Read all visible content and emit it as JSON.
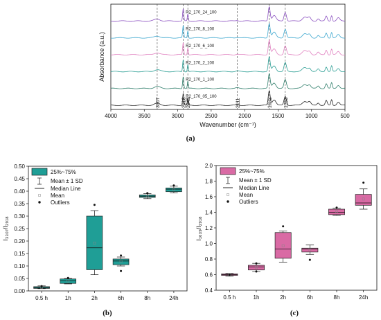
{
  "chart_data": [
    {
      "panel": "(a)",
      "type": "line",
      "xlabel": "Wavenumber (cm⁻¹)",
      "ylabel": "Absorbance (a.u.)",
      "xlim": [
        4000,
        500
      ],
      "x_ticks": [
        "4000",
        "3500",
        "3000",
        "2500",
        "2000",
        "1500",
        "1000",
        "500"
      ],
      "reference_lines": [
        "3307",
        "2918",
        "2849",
        "2111",
        "1632",
        "1393"
      ],
      "colors": [
        "#222222",
        "#2e7d6a",
        "#2b9e94",
        "#e07fbf",
        "#3ca7cf",
        "#8a4fc0"
      ],
      "series": [
        {
          "name": "R2_170_05_100"
        },
        {
          "name": "R2_170_1_100"
        },
        {
          "name": "R2_170_2_100"
        },
        {
          "name": "R2_170_6_100"
        },
        {
          "name": "R2_170_8_100"
        },
        {
          "name": "R2_170_24_100"
        }
      ],
      "peaks": [
        {
          "x": 3307,
          "h": 0.12,
          "w": 60
        },
        {
          "x": 2918,
          "h": 0.75,
          "w": 12
        },
        {
          "x": 2849,
          "h": 0.45,
          "w": 10
        },
        {
          "x": 2111,
          "h": 0.04,
          "w": 30
        },
        {
          "x": 1632,
          "h": 0.9,
          "w": 20
        },
        {
          "x": 1560,
          "h": 0.35,
          "w": 40
        },
        {
          "x": 1393,
          "h": 0.55,
          "w": 25
        },
        {
          "x": 1100,
          "h": 0.25,
          "w": 50
        },
        {
          "x": 1030,
          "h": 0.2,
          "w": 30
        },
        {
          "x": 900,
          "h": 0.15,
          "w": 25
        },
        {
          "x": 780,
          "h": 0.3,
          "w": 20
        },
        {
          "x": 700,
          "h": 0.35,
          "w": 15
        },
        {
          "x": 600,
          "h": 0.2,
          "w": 30
        }
      ]
    },
    {
      "panel": "(b)",
      "type": "box",
      "ylabel": "I₃₃₀₇/I₂₉₁₈",
      "ylim": [
        0,
        0.5
      ],
      "y_ticks": [
        "0.00",
        "0.05",
        "0.10",
        "0.15",
        "0.20",
        "0.25",
        "0.30",
        "0.35",
        "0.40",
        "0.45",
        "0.50"
      ],
      "categories": [
        "0.5 h",
        "1h",
        "2h",
        "6h",
        "8h",
        "24h"
      ],
      "color": "#1f9e96",
      "boxes": [
        {
          "q1": 0.01,
          "median": 0.013,
          "q3": 0.017,
          "mean": 0.014,
          "wlo": 0.009,
          "whi": 0.02,
          "outliers": [
            0.019
          ]
        },
        {
          "q1": 0.03,
          "median": 0.04,
          "q3": 0.048,
          "mean": 0.04,
          "wlo": 0.028,
          "whi": 0.05,
          "outliers": [
            0.052
          ]
        },
        {
          "q1": 0.085,
          "median": 0.173,
          "q3": 0.3,
          "mean": 0.192,
          "wlo": 0.065,
          "whi": 0.322,
          "outliers": [
            0.345
          ]
        },
        {
          "q1": 0.105,
          "median": 0.12,
          "q3": 0.128,
          "mean": 0.118,
          "wlo": 0.1,
          "whi": 0.136,
          "outliers": [
            0.08,
            0.142
          ]
        },
        {
          "q1": 0.375,
          "median": 0.38,
          "q3": 0.385,
          "mean": 0.38,
          "wlo": 0.37,
          "whi": 0.39,
          "outliers": [
            0.392
          ]
        },
        {
          "q1": 0.398,
          "median": 0.408,
          "q3": 0.413,
          "mean": 0.406,
          "wlo": 0.393,
          "whi": 0.42,
          "outliers": [
            0.423
          ]
        }
      ],
      "legend": [
        "25%~75%",
        "Mean ± 1 SD",
        "Median Line",
        "Mean",
        "Outliers"
      ]
    },
    {
      "panel": "(c)",
      "type": "box",
      "ylabel": "I₁₆₃₉/I₂₉₁₈",
      "ylim": [
        0.4,
        2.0
      ],
      "y_ticks": [
        "0.4",
        "0.6",
        "0.8",
        "1.0",
        "1.2",
        "1.4",
        "1.6",
        "1.8",
        "2.0"
      ],
      "categories": [
        "0.5 h",
        "1h",
        "2h",
        "6h",
        "8h",
        "24h"
      ],
      "color": "#d96aa4",
      "boxes": [
        {
          "q1": 0.59,
          "median": 0.6,
          "q3": 0.61,
          "mean": 0.6,
          "wlo": 0.58,
          "whi": 0.615,
          "outliers": [
            0.6
          ]
        },
        {
          "q1": 0.66,
          "median": 0.7,
          "q3": 0.72,
          "mean": 0.69,
          "wlo": 0.64,
          "whi": 0.745,
          "outliers": [
            0.64,
            0.745
          ]
        },
        {
          "q1": 0.81,
          "median": 0.93,
          "q3": 1.14,
          "mean": 0.97,
          "wlo": 0.76,
          "whi": 1.16,
          "outliers": [
            1.22
          ]
        },
        {
          "q1": 0.89,
          "median": 0.93,
          "q3": 0.94,
          "mean": 0.92,
          "wlo": 0.86,
          "whi": 0.98,
          "outliers": [
            0.79
          ]
        },
        {
          "q1": 1.37,
          "median": 1.4,
          "q3": 1.44,
          "mean": 1.41,
          "wlo": 1.36,
          "whi": 1.455,
          "outliers": [
            1.46
          ]
        },
        {
          "q1": 1.49,
          "median": 1.52,
          "q3": 1.63,
          "mean": 1.57,
          "wlo": 1.44,
          "whi": 1.7,
          "outliers": [
            1.78
          ]
        }
      ],
      "legend": [
        "25%~75%",
        "Mean ± 1 SD",
        "Median Line",
        "Mean",
        "Outliers"
      ]
    }
  ]
}
